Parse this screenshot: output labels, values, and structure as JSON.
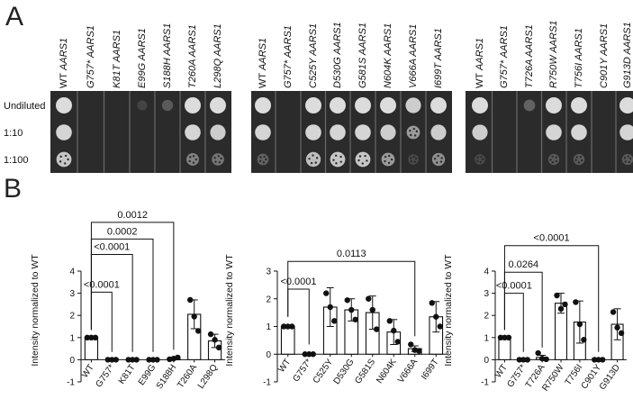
{
  "panel_labels": [
    "A",
    "B"
  ],
  "dilution_labels": [
    "Undiluted",
    "1:10",
    "1:100"
  ],
  "plates": [
    {
      "strains": [
        {
          "mut": "WT",
          "gene": "AARS1",
          "growth": [
            1.0,
            0.95,
            0.85
          ]
        },
        {
          "mut": "G757*",
          "gene": "AARS1",
          "growth": [
            0.0,
            0.0,
            0.0
          ]
        },
        {
          "mut": "K81T",
          "gene": "AARS1",
          "growth": [
            0.0,
            0.0,
            0.0
          ]
        },
        {
          "mut": "E99G",
          "gene": "AARS1",
          "growth": [
            0.15,
            0.0,
            0.0
          ]
        },
        {
          "mut": "S188H",
          "gene": "AARS1",
          "growth": [
            0.3,
            0.0,
            0.0
          ]
        },
        {
          "mut": "T260A",
          "gene": "AARS1",
          "growth": [
            1.0,
            0.95,
            0.5
          ]
        },
        {
          "mut": "L298Q",
          "gene": "AARS1",
          "growth": [
            1.0,
            0.9,
            0.45
          ]
        }
      ]
    },
    {
      "strains": [
        {
          "mut": "WT",
          "gene": "AARS1",
          "growth": [
            1.0,
            0.95,
            0.35
          ]
        },
        {
          "mut": "G757*",
          "gene": "AARS1",
          "growth": [
            0.0,
            0.0,
            0.0
          ]
        },
        {
          "mut": "C525Y",
          "gene": "AARS1",
          "growth": [
            1.0,
            0.95,
            0.8
          ]
        },
        {
          "mut": "D530G",
          "gene": "AARS1",
          "growth": [
            1.0,
            0.95,
            0.85
          ]
        },
        {
          "mut": "G581S",
          "gene": "AARS1",
          "growth": [
            1.0,
            0.95,
            0.85
          ]
        },
        {
          "mut": "N604K",
          "gene": "AARS1",
          "growth": [
            1.0,
            0.9,
            0.6
          ]
        },
        {
          "mut": "V666A",
          "gene": "AARS1",
          "growth": [
            0.9,
            0.6,
            0.2
          ]
        },
        {
          "mut": "I699T",
          "gene": "AARS1",
          "growth": [
            1.0,
            0.9,
            0.55
          ]
        }
      ]
    },
    {
      "strains": [
        {
          "mut": "WT",
          "gene": "AARS1",
          "growth": [
            1.0,
            0.9,
            0.2
          ]
        },
        {
          "mut": "G757*",
          "gene": "AARS1",
          "growth": [
            0.0,
            0.0,
            0.0
          ]
        },
        {
          "mut": "T726A",
          "gene": "AARS1",
          "growth": [
            0.35,
            0.0,
            0.0
          ]
        },
        {
          "mut": "R750W",
          "gene": "AARS1",
          "growth": [
            1.0,
            0.95,
            0.3
          ]
        },
        {
          "mut": "T756I",
          "gene": "AARS1",
          "growth": [
            1.0,
            0.95,
            0.3
          ]
        },
        {
          "mut": "C901Y",
          "gene": "AARS1",
          "growth": [
            0.0,
            0.0,
            0.0
          ]
        },
        {
          "mut": "G913D",
          "gene": "AARS1",
          "growth": [
            1.0,
            0.95,
            0.3
          ]
        }
      ]
    }
  ],
  "chart_data": [
    {
      "type": "bar",
      "ylabel": "Intensity normalized to WT",
      "ylim": [
        -1,
        4
      ],
      "yticks": [
        "-1",
        "0",
        "1",
        "2",
        "3",
        "4"
      ],
      "categories": [
        "WT",
        "G757*",
        "K81T",
        "E99G",
        "S188H",
        "T260A",
        "L298Q"
      ],
      "values": [
        1.0,
        0.0,
        0.0,
        0.0,
        0.05,
        2.05,
        0.85
      ],
      "errors": [
        0.0,
        0.0,
        0.0,
        0.0,
        0.05,
        0.65,
        0.3
      ],
      "points": [
        [
          1.0,
          1.0,
          1.0
        ],
        [
          0.0,
          0.0,
          0.0
        ],
        [
          0.0,
          0.0,
          0.0
        ],
        [
          0.0,
          0.0,
          0.0
        ],
        [
          0.02,
          0.05,
          0.1
        ],
        [
          2.7,
          1.95,
          1.3
        ],
        [
          1.15,
          0.9,
          0.55
        ]
      ],
      "comparisons": [
        {
          "label": "<0.0001",
          "from": "WT",
          "to": "G757*",
          "y": 3.05
        },
        {
          "label": "<0.0001",
          "from": "WT",
          "to": "K81T",
          "y": 4.75
        },
        {
          "label": "0.0002",
          "from": "WT",
          "to": "E99G",
          "y": 5.45
        },
        {
          "label": "0.0012",
          "from": "WT",
          "to": "S188H",
          "y": 6.2
        }
      ]
    },
    {
      "type": "bar",
      "ylabel": "Intensity normalized to WT",
      "ylim": [
        -1,
        3
      ],
      "yticks": [
        "-1",
        "0",
        "1",
        "2",
        "3"
      ],
      "categories": [
        "WT",
        "G757*",
        "C525Y",
        "D530G",
        "G581S",
        "N604K",
        "V666A",
        "I699T"
      ],
      "values": [
        1.0,
        0.0,
        1.7,
        1.6,
        1.5,
        0.8,
        0.2,
        1.35
      ],
      "errors": [
        0.0,
        0.0,
        0.7,
        0.4,
        0.6,
        0.45,
        0.1,
        0.55
      ],
      "points": [
        [
          1.0,
          1.0,
          1.0
        ],
        [
          0.0,
          0.0,
          0.0
        ],
        [
          2.2,
          1.7,
          1.2
        ],
        [
          1.95,
          1.6,
          1.25
        ],
        [
          2.0,
          1.6,
          0.9
        ],
        [
          1.2,
          0.85,
          0.45
        ],
        [
          0.35,
          0.15,
          0.12
        ],
        [
          1.85,
          1.35,
          1.0
        ]
      ],
      "comparisons": [
        {
          "label": "<0.0001",
          "from": "WT",
          "to": "G757*",
          "y": 2.35
        },
        {
          "label": "0.0113",
          "from": "WT",
          "to": "V666A",
          "y": 3.35
        }
      ]
    },
    {
      "type": "bar",
      "ylabel": "Intensity normalized to WT",
      "ylim": [
        -1,
        4
      ],
      "yticks": [
        "-1",
        "0",
        "1",
        "2",
        "3",
        "4"
      ],
      "categories": [
        "WT",
        "G757*",
        "T726A",
        "R750W",
        "T756I",
        "C901Y",
        "G913D"
      ],
      "values": [
        1.0,
        0.0,
        0.1,
        2.55,
        1.7,
        0.0,
        1.6
      ],
      "errors": [
        0.0,
        0.0,
        0.1,
        0.45,
        0.95,
        0.0,
        0.7
      ],
      "points": [
        [
          1.0,
          1.0,
          1.0
        ],
        [
          0.0,
          0.0,
          0.0
        ],
        [
          0.3,
          0.05,
          0.02
        ],
        [
          2.9,
          2.3,
          2.5
        ],
        [
          2.6,
          1.6,
          0.9
        ],
        [
          0.0,
          0.0,
          0.0
        ],
        [
          2.15,
          1.45,
          1.2
        ]
      ],
      "comparisons": [
        {
          "label": "<0.0001",
          "from": "WT",
          "to": "G757*",
          "y": 3.0
        },
        {
          "label": "0.0264",
          "from": "WT",
          "to": "T726A",
          "y": 3.95
        },
        {
          "label": "<0.0001",
          "from": "WT",
          "to": "C901Y",
          "y": 5.15
        }
      ]
    }
  ]
}
